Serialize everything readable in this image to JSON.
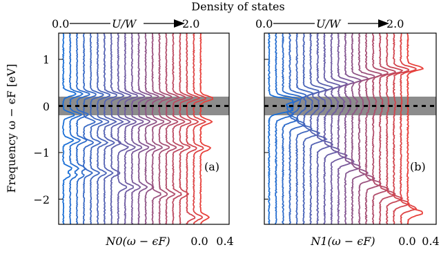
{
  "figure": {
    "title": "Density of states",
    "ylabel": "Frequency ω − ϵF [eV]"
  },
  "chart_data": [
    {
      "type": "line",
      "panel_label": "(a)",
      "xlabel": "N0(ω − ϵF)",
      "x_tick_labels": [
        "0.0",
        "0.4"
      ],
      "sweep_label": {
        "start": "0.0",
        "param": "U/W",
        "end": "2.0"
      },
      "ylim": [
        -2.55,
        1.55
      ],
      "y_ticks": [
        -2,
        -1,
        0,
        1
      ],
      "fermi_band": [
        -0.2,
        0.2
      ],
      "fermi_line": 0.0,
      "sweep": {
        "U_over_W_start": 0.0,
        "U_over_W_end": 2.0,
        "n_curves": 21
      },
      "colors": {
        "start": "#1a6fd6",
        "middle": "#7a5a9c",
        "end": "#e8403a"
      },
      "peak_positions_by_sweep": {
        "U_over_W": [
          0.0,
          0.5,
          1.0,
          1.5,
          2.0
        ],
        "upper_peak": [
          0.25,
          0.22,
          0.2,
          0.18,
          0.15
        ],
        "lower_peaks": [
          [
            -0.2,
            -0.75,
            -1.35,
            -1.5
          ],
          [
            -0.35,
            -0.8,
            -1.45
          ],
          [
            -0.35,
            -0.9,
            -1.75
          ],
          [
            -0.35,
            -0.9,
            -1.9
          ],
          [
            -0.35,
            -0.92,
            -2.4
          ]
        ]
      }
    },
    {
      "type": "line",
      "panel_label": "(b)",
      "xlabel": "N1(ω − ϵF)",
      "x_tick_labels": [
        "0.0",
        "0.4"
      ],
      "sweep_label": {
        "start": "0.0",
        "param": "U/W",
        "end": "2.0"
      },
      "ylim": [
        -2.55,
        1.55
      ],
      "y_ticks": [
        -2,
        -1,
        0,
        1
      ],
      "fermi_band": [
        -0.2,
        0.2
      ],
      "fermi_line": 0.0,
      "sweep": {
        "U_over_W_start": 0.0,
        "U_over_W_end": 2.0,
        "n_curves": 21
      },
      "colors": {
        "start": "#1a6fd6",
        "middle": "#7a5a9c",
        "end": "#e8403a"
      },
      "peak_positions_by_sweep": {
        "U_over_W": [
          0.0,
          0.5,
          1.0,
          1.5,
          2.0
        ],
        "upper_peak": [
          0.1,
          0.3,
          0.5,
          0.7,
          0.8
        ],
        "lower_peak": [
          -0.1,
          -0.6,
          -1.2,
          -1.8,
          -2.3
        ]
      }
    }
  ]
}
